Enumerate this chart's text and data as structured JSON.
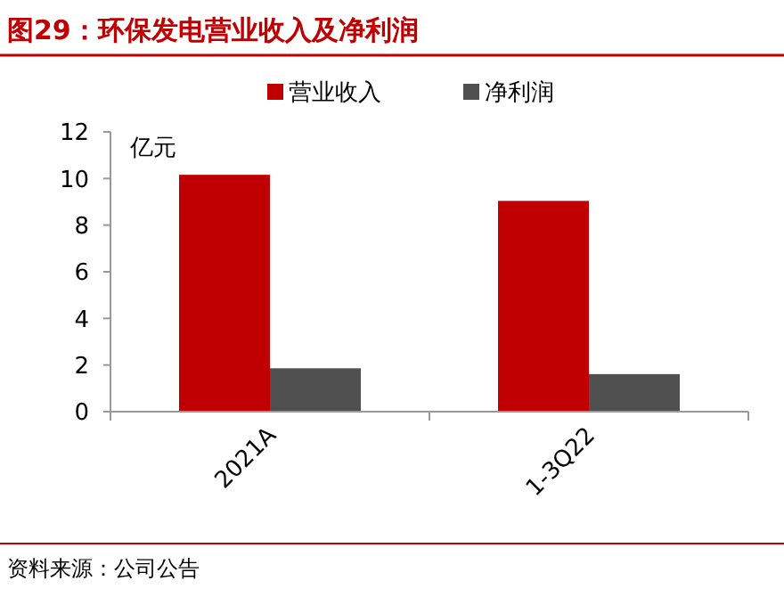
{
  "chart_data": {
    "type": "bar",
    "title": "图29：环保发电营业收入及净利润",
    "ylabel": "亿元",
    "categories": [
      "2021A",
      "1-3Q22"
    ],
    "series": [
      {
        "name": "营业收入",
        "color": "#c00000",
        "values": [
          10.16,
          9.04
        ]
      },
      {
        "name": "净利润",
        "color": "#505050",
        "values": [
          1.86,
          1.61
        ]
      }
    ],
    "ylim": [
      0,
      12
    ],
    "yticks": [
      0,
      2,
      4,
      6,
      8,
      10,
      12
    ],
    "grid": false,
    "legend": "top",
    "annotations": [
      "资料来源：公司公告"
    ]
  }
}
